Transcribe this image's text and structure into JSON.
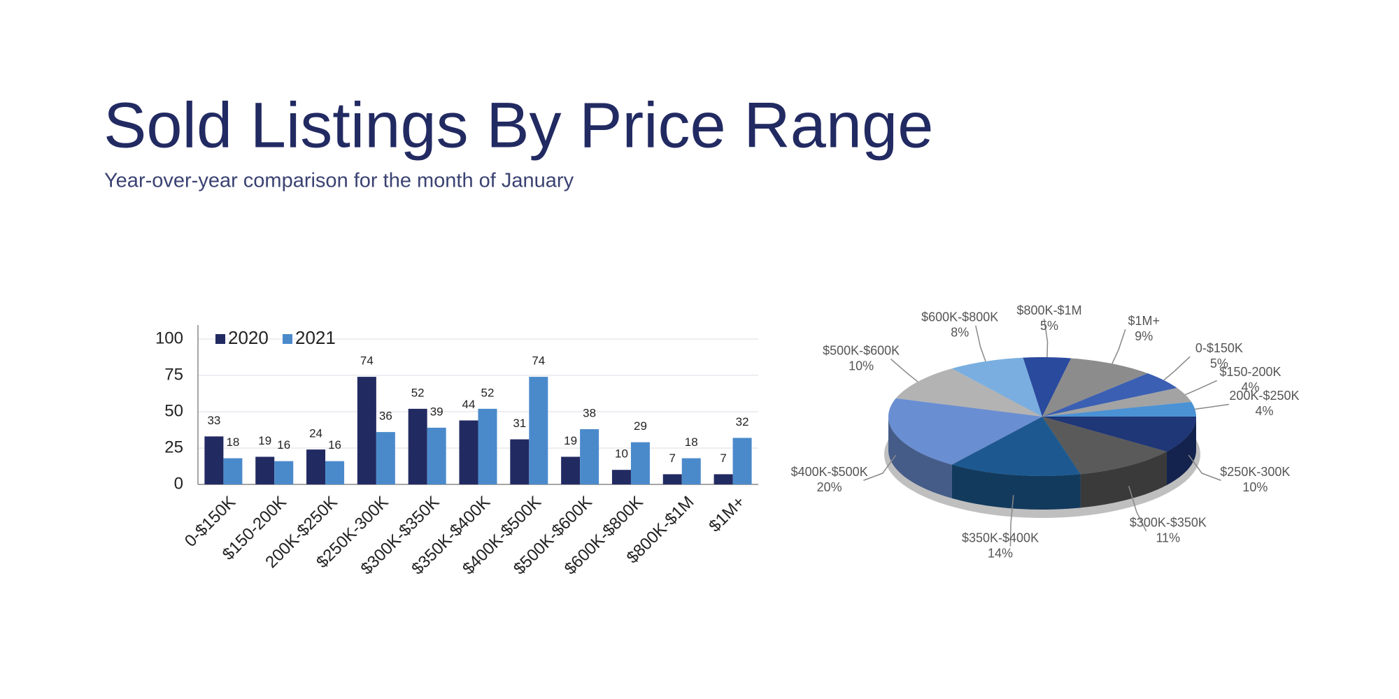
{
  "title": "Sold Listings By Price Range",
  "subtitle": "Year-over-year comparison for the month of January",
  "chart_data": [
    {
      "type": "bar",
      "categories": [
        "0-$150K",
        "$150-200K",
        "200K-$250K",
        "$250K-300K",
        "$300K-$350K",
        "$350K-$400K",
        "$400K-$500K",
        "$500K-$600K",
        "$600K-$800K",
        "$800K-$1M",
        "$1M+"
      ],
      "series": [
        {
          "name": "2020",
          "color": "#222a62",
          "values": [
            33,
            19,
            24,
            74,
            52,
            44,
            31,
            19,
            10,
            7,
            7
          ]
        },
        {
          "name": "2021",
          "color": "#4a8acb",
          "values": [
            18,
            16,
            16,
            36,
            39,
            52,
            74,
            38,
            29,
            18,
            32
          ]
        }
      ],
      "ylim": [
        0,
        100
      ],
      "yticks": [
        0,
        25,
        50,
        75,
        100
      ],
      "grid": true,
      "legend": "top-left"
    },
    {
      "type": "pie",
      "categories": [
        "0-$150K",
        "$150-200K",
        "200K-$250K",
        "$250K-300K",
        "$300K-$350K",
        "$350K-$400K",
        "$400K-$500K",
        "$500K-$600K",
        "$600K-$800K",
        "$800K-$1M",
        "$1M+"
      ],
      "values": [
        5,
        4,
        4,
        10,
        11,
        14,
        20,
        10,
        8,
        5,
        9
      ],
      "value_labels": [
        "5%",
        "4%",
        "4%",
        "10%",
        "11%",
        "14%",
        "20%",
        "10%",
        "8%",
        "5%",
        "9%"
      ],
      "colors": [
        "#3b5fb2",
        "#a3a3a3",
        "#4b92d4",
        "#1f3677",
        "#5a5a5a",
        "#1d5990",
        "#6a8ed2",
        "#b3b3b3",
        "#7aaee0",
        "#2a4a9e",
        "#8c8c8c"
      ]
    }
  ]
}
